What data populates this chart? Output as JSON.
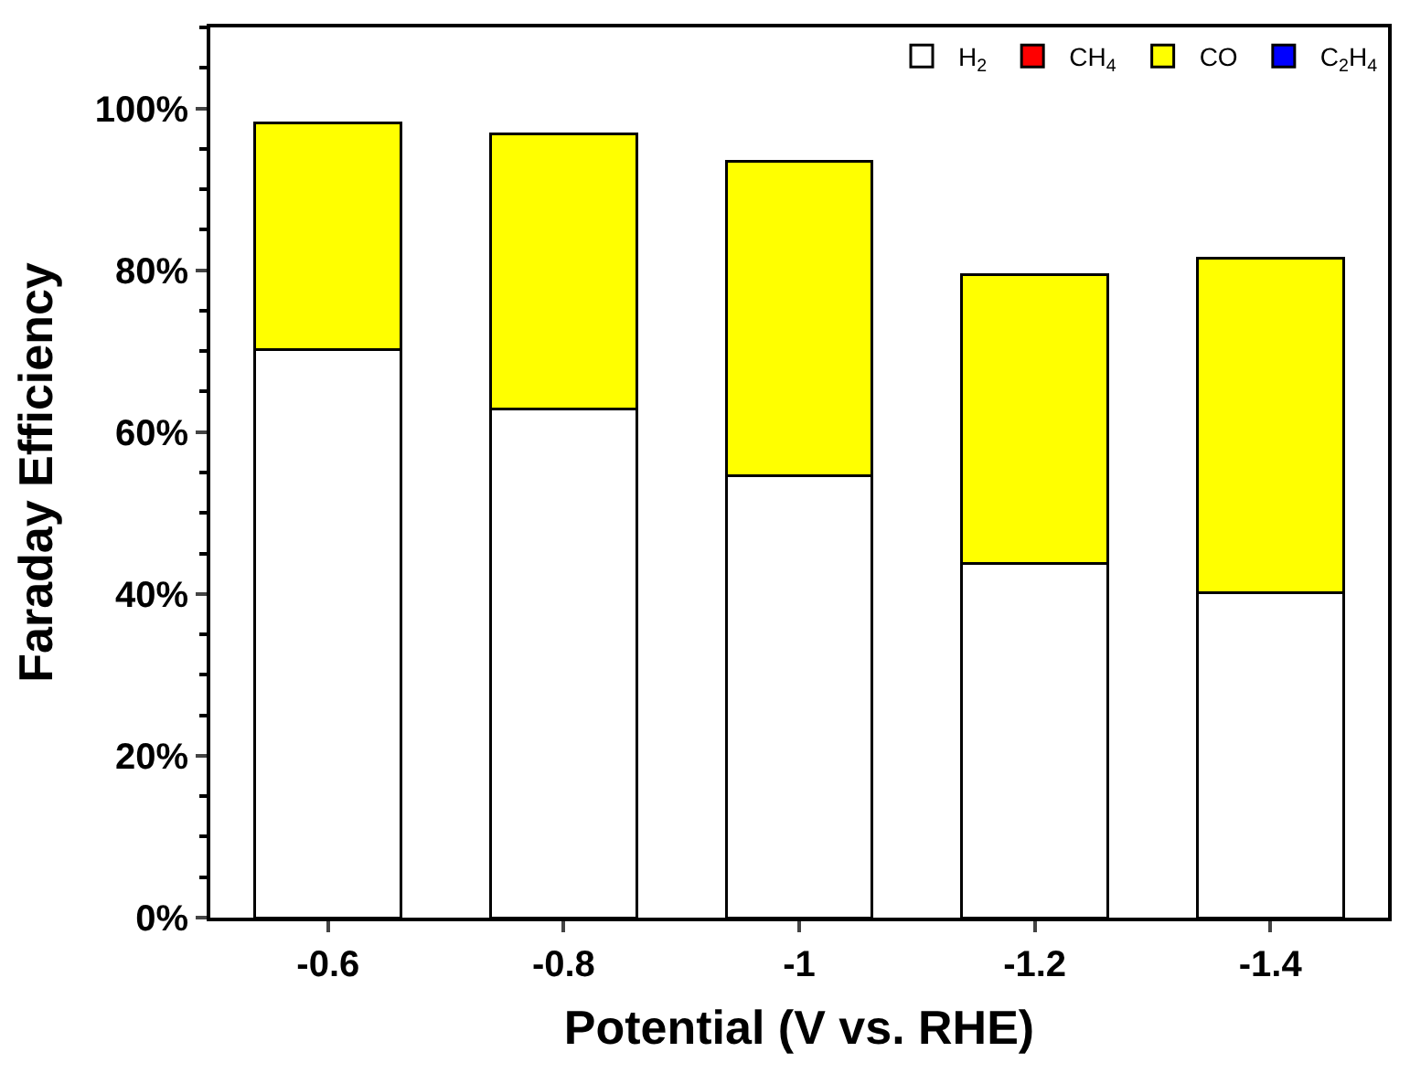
{
  "chart_data": {
    "type": "bar",
    "stacked": true,
    "xlabel": "Potential (V vs. RHE)",
    "ylabel": "Faraday Efficiency",
    "categories": [
      "-0.6",
      "-0.8",
      "-1",
      "-1.2",
      "-1.4"
    ],
    "series": [
      {
        "name": "H$_{2}$",
        "color": "#ffffff",
        "values": [
          70.2,
          62.8,
          54.6,
          43.8,
          40.2
        ]
      },
      {
        "name": "CH$_{4}$",
        "color": "#ff0000",
        "values": [
          null,
          null,
          null,
          null,
          null
        ]
      },
      {
        "name": "CO",
        "color": "#ffff00",
        "values": [
          28.0,
          34.0,
          38.9,
          35.7,
          41.3
        ]
      },
      {
        "name": "C$_{2}$H$_{4}$",
        "color": "#0000ff",
        "values": [
          null,
          null,
          null,
          null,
          null
        ]
      }
    ],
    "ylim": [
      0,
      110
    ],
    "yticks": [
      {
        "value": 0,
        "label": "0%"
      },
      {
        "value": 20,
        "label": "20%"
      },
      {
        "value": 40,
        "label": "40%"
      },
      {
        "value": 60,
        "label": "60%"
      },
      {
        "value": 80,
        "label": "80%"
      },
      {
        "value": 100,
        "label": "100%"
      }
    ],
    "legend": "top right"
  }
}
